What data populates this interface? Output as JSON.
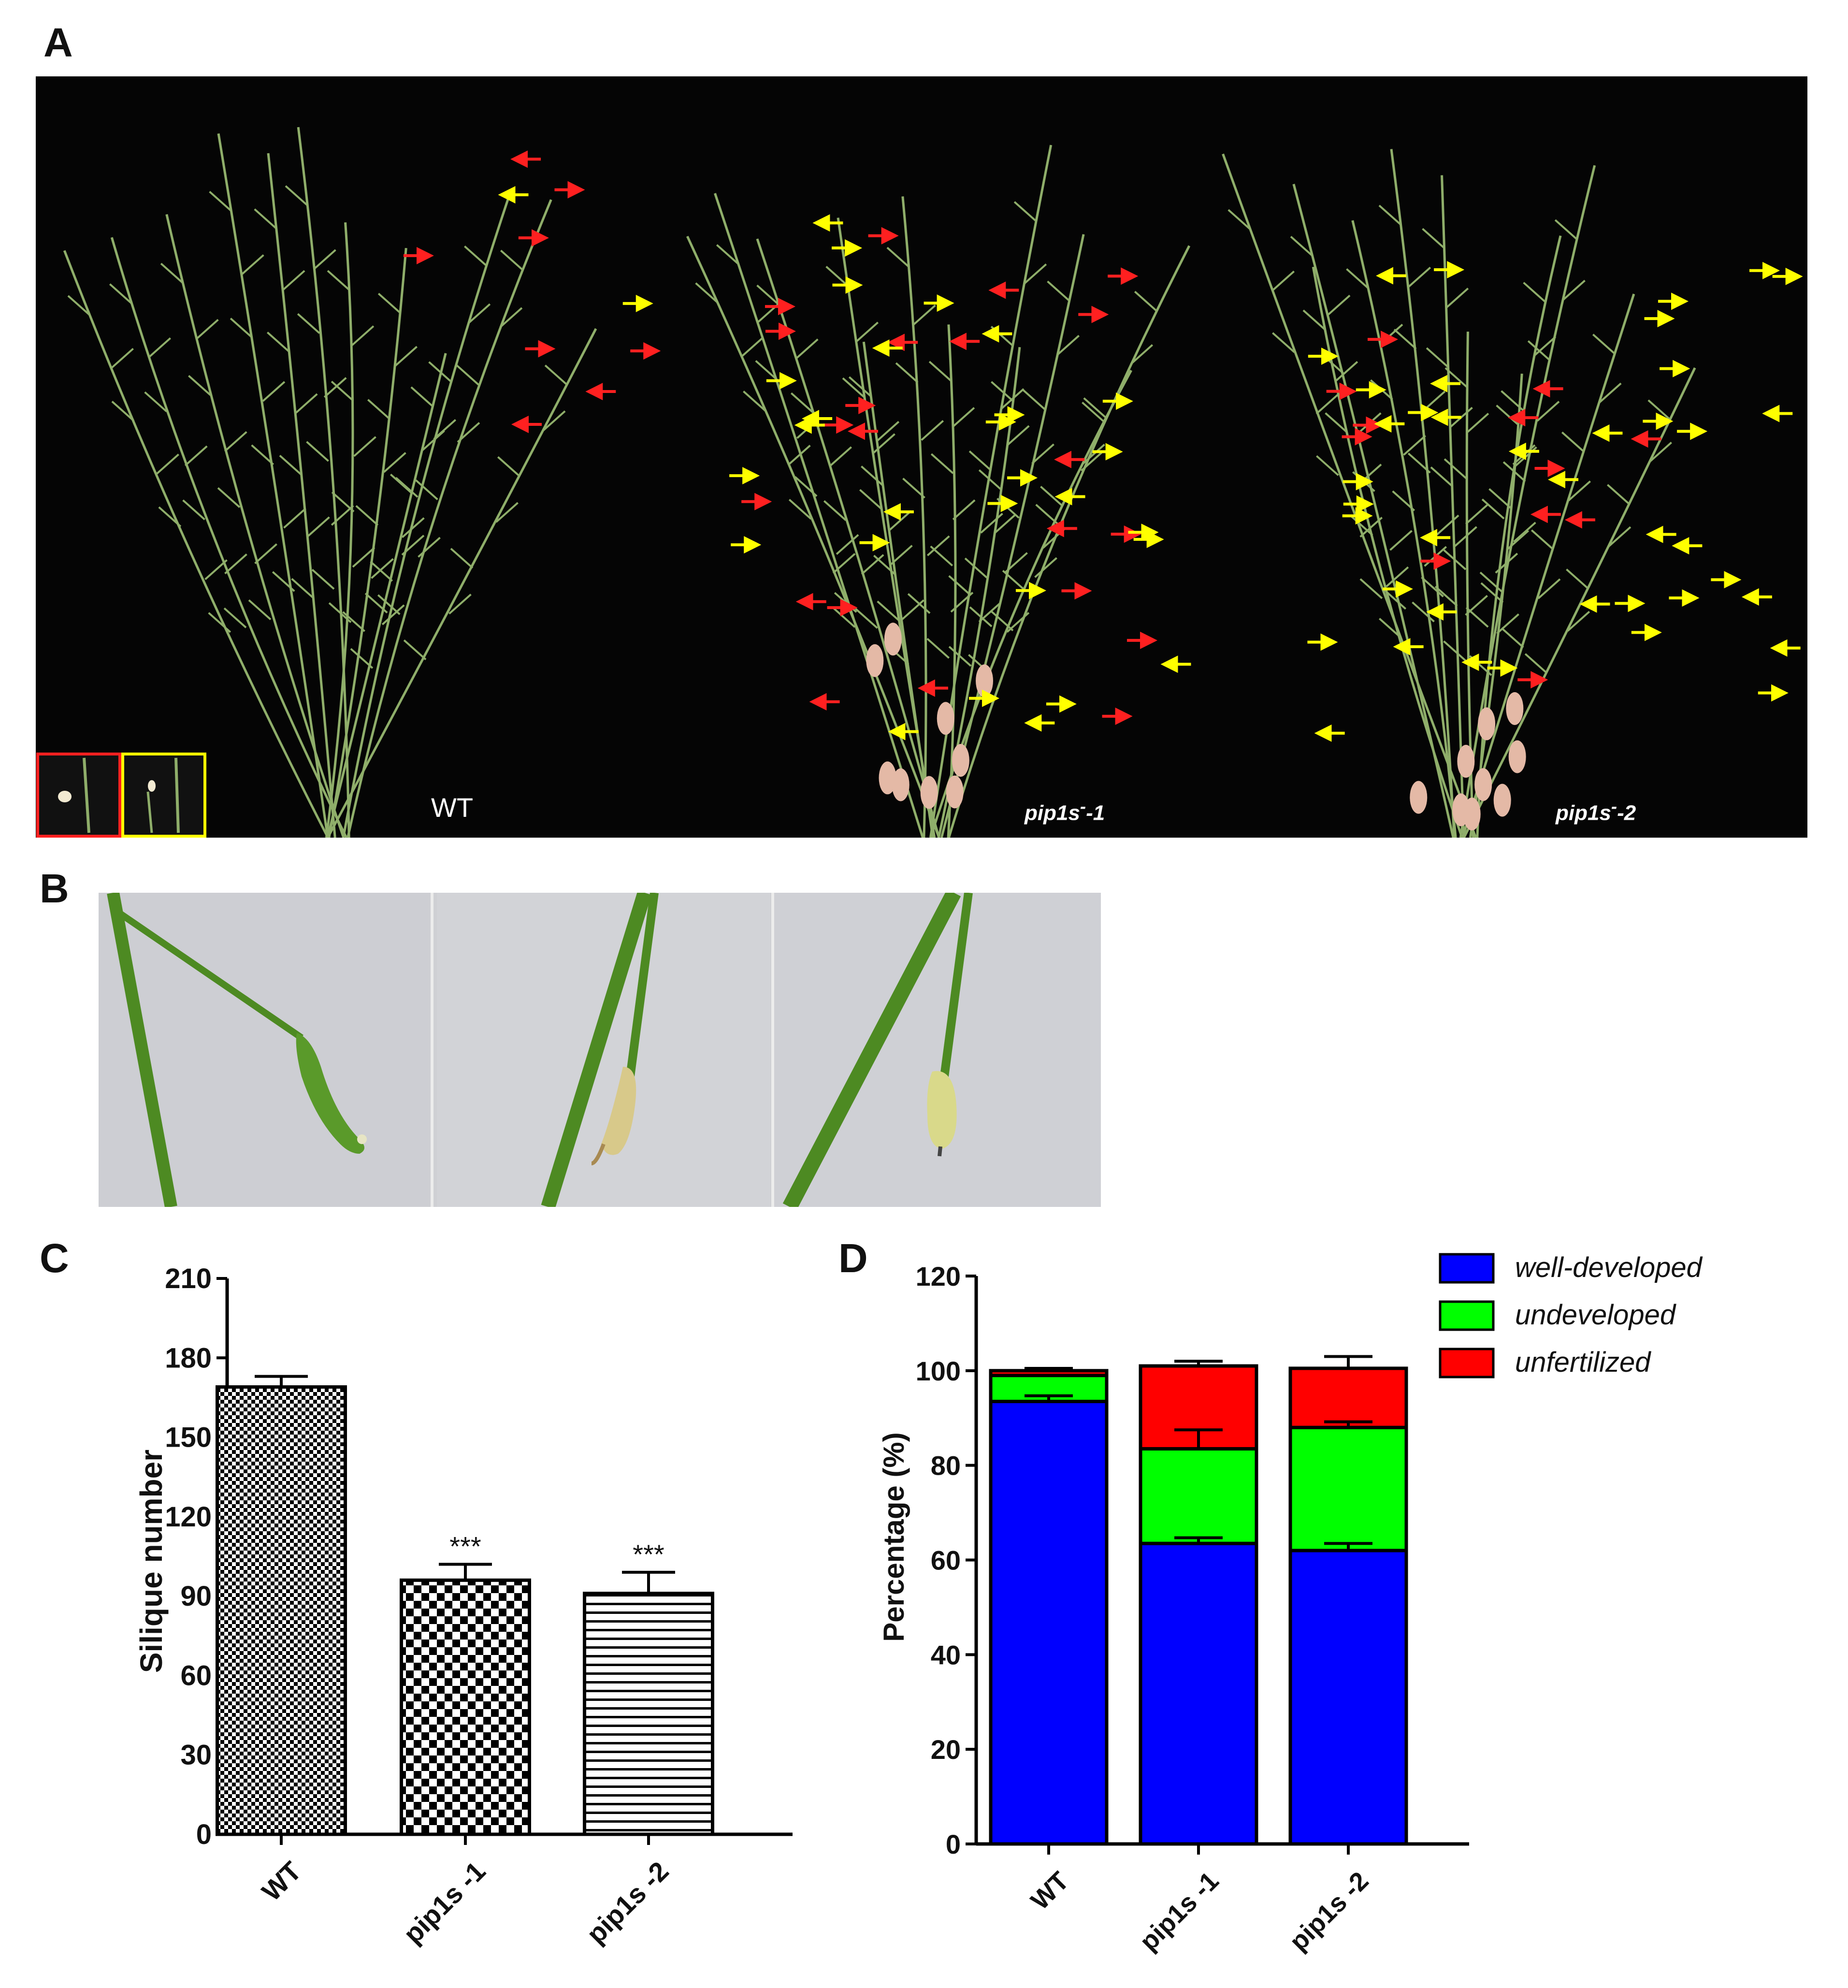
{
  "panels": {
    "a": "A",
    "b": "B",
    "c": "C",
    "d": "D"
  },
  "panel_a": {
    "labels": {
      "wt": "WT",
      "m1_base": "pip1s",
      "m1_sup": "-",
      "m1_suffix": "-1",
      "m2_base": "pip1s",
      "m2_sup": "-",
      "m2_suffix": "-2"
    },
    "colors": {
      "background": "#050505",
      "stem": "#8fae6a",
      "red_arrow": "#ff2020",
      "yellow_arrow": "#ffff00"
    }
  },
  "panel_b": {
    "colors": {
      "background": "#cfd0d4",
      "stem": "#3f7e1c"
    }
  },
  "chart_data": [
    {
      "type": "bar",
      "panel": "C",
      "ylabel": "Silique number",
      "ylim": [
        0,
        210
      ],
      "yticks": [
        "0",
        "30",
        "60",
        "90",
        "120",
        "150",
        "180",
        "210"
      ],
      "categories": [
        "WT",
        "pip1s -1",
        "pip1s -2"
      ],
      "values": [
        169,
        96,
        91
      ],
      "errors": [
        4,
        6,
        8
      ],
      "annotations": [
        "",
        "***",
        "***"
      ],
      "patterns": [
        "fine-checker",
        "coarse-checker",
        "horizontal-lines"
      ]
    },
    {
      "type": "bar",
      "stacked": true,
      "panel": "D",
      "ylabel": "Percentage (%)",
      "ylim": [
        0,
        120
      ],
      "yticks": [
        "0",
        "20",
        "40",
        "60",
        "80",
        "100",
        "120"
      ],
      "categories": [
        "WT",
        "pip1s -1",
        "pip1s -2"
      ],
      "series": [
        {
          "name": "well-developed",
          "color": "#0000ff",
          "values": [
            93.5,
            63.5,
            62
          ],
          "errors": [
            1.2,
            1.2,
            1.5
          ]
        },
        {
          "name": "undeveloped",
          "color": "#00ff00",
          "values": [
            5.5,
            20,
            26
          ],
          "errors": [
            0,
            4,
            1.2
          ]
        },
        {
          "name": "unfertilized",
          "color": "#ff0000",
          "values": [
            1,
            17.5,
            12.5
          ],
          "errors": [
            0.5,
            1,
            2.5
          ]
        }
      ],
      "legend_position": "top-right"
    }
  ]
}
